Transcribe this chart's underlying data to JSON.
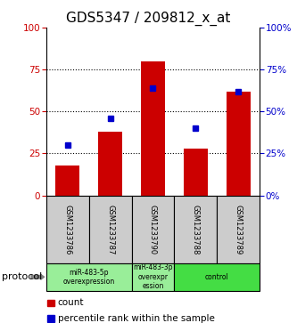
{
  "title": "GDS5347 / 209812_x_at",
  "samples": [
    "GSM1233786",
    "GSM1233787",
    "GSM1233790",
    "GSM1233788",
    "GSM1233789"
  ],
  "red_bars": [
    18,
    38,
    80,
    28,
    62
  ],
  "blue_markers": [
    30,
    46,
    64,
    40,
    62
  ],
  "ylim": [
    0,
    100
  ],
  "yticks": [
    0,
    25,
    50,
    75,
    100
  ],
  "bar_color": "#cc0000",
  "marker_color": "#0000cc",
  "protocol_label": "protocol",
  "legend_count": "count",
  "legend_percentile": "percentile rank within the sample",
  "sample_box_color": "#cccccc",
  "background_color": "#ffffff",
  "title_fontsize": 11,
  "tick_fontsize": 7.5,
  "groups_info": [
    {
      "indices": [
        0,
        1
      ],
      "label": "miR-483-5p\noverexpression",
      "color": "#99ee99"
    },
    {
      "indices": [
        2
      ],
      "label": "miR-483-3p\noverexpr\nession",
      "color": "#99ee99"
    },
    {
      "indices": [
        3,
        4
      ],
      "label": "control",
      "color": "#44dd44"
    }
  ]
}
